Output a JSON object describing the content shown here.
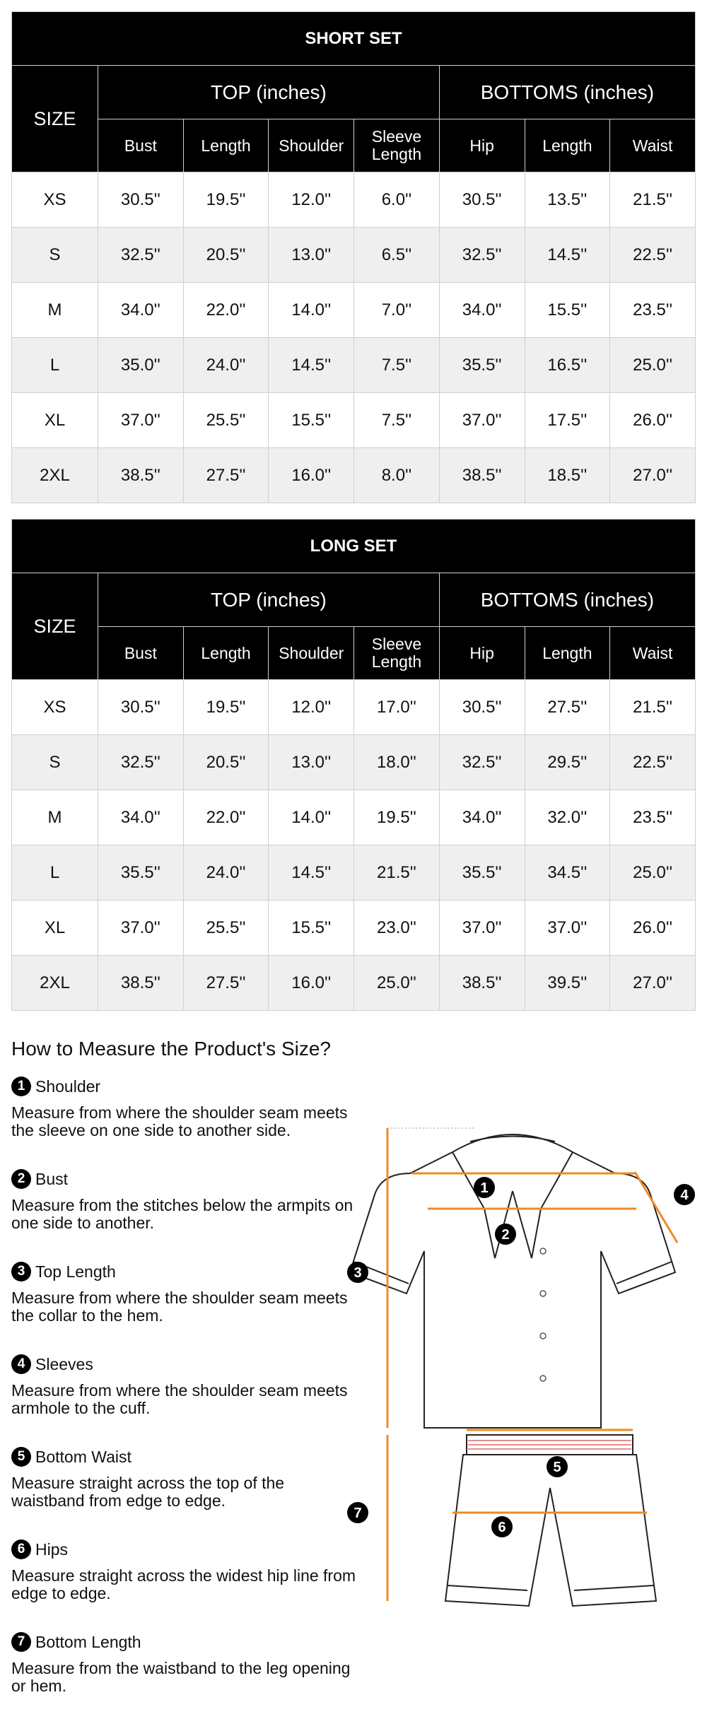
{
  "short_set": {
    "title": "SHORT SET",
    "size_label": "SIZE",
    "top_label": "TOP (inches)",
    "bottoms_label": "BOTTOMS (inches)",
    "columns": [
      "Bust",
      "Length",
      "Shoulder",
      "Sleeve Length",
      "Hip",
      "Length",
      "Waist"
    ],
    "rows": [
      [
        "XS",
        "30.5''",
        "19.5''",
        "12.0''",
        "6.0''",
        "30.5''",
        "13.5''",
        "21.5''"
      ],
      [
        "S",
        "32.5''",
        "20.5''",
        "13.0''",
        "6.5''",
        "32.5''",
        "14.5''",
        "22.5''"
      ],
      [
        "M",
        "34.0''",
        "22.0''",
        "14.0''",
        "7.0''",
        "34.0''",
        "15.5''",
        "23.5''"
      ],
      [
        "L",
        "35.0''",
        "24.0''",
        "14.5''",
        "7.5''",
        "35.5''",
        "16.5''",
        "25.0''"
      ],
      [
        "XL",
        "37.0''",
        "25.5''",
        "15.5''",
        "7.5''",
        "37.0''",
        "17.5''",
        "26.0''"
      ],
      [
        "2XL",
        "38.5''",
        "27.5''",
        "16.0''",
        "8.0''",
        "38.5''",
        "18.5''",
        "27.0''"
      ]
    ]
  },
  "long_set": {
    "title": "LONG SET",
    "size_label": "SIZE",
    "top_label": "TOP (inches)",
    "bottoms_label": "BOTTOMS (inches)",
    "columns": [
      "Bust",
      "Length",
      "Shoulder",
      "Sleeve Length",
      "Hip",
      "Length",
      "Waist"
    ],
    "rows": [
      [
        "XS",
        "30.5''",
        "19.5''",
        "12.0''",
        "17.0''",
        "30.5''",
        "27.5''",
        "21.5''"
      ],
      [
        "S",
        "32.5''",
        "20.5''",
        "13.0''",
        "18.0''",
        "32.5''",
        "29.5''",
        "22.5''"
      ],
      [
        "M",
        "34.0''",
        "22.0''",
        "14.0''",
        "19.5''",
        "34.0''",
        "32.0''",
        "23.5''"
      ],
      [
        "L",
        "35.5''",
        "24.0''",
        "14.5''",
        "21.5''",
        "35.5''",
        "34.5''",
        "25.0''"
      ],
      [
        "XL",
        "37.0''",
        "25.5''",
        "15.5''",
        "23.0''",
        "37.0''",
        "37.0''",
        "26.0''"
      ],
      [
        "2XL",
        "38.5''",
        "27.5''",
        "16.0''",
        "25.0''",
        "38.5''",
        "39.5''",
        "27.0''"
      ]
    ]
  },
  "guide": {
    "title": "How to Measure the Product's Size?",
    "items": [
      {
        "num": "1",
        "name": "Shoulder",
        "desc": "Measure from where the shoulder seam meets the sleeve on one side to another side."
      },
      {
        "num": "2",
        "name": "Bust",
        "desc": "Measure from the stitches below the armpits on one side to another."
      },
      {
        "num": "3",
        "name": "Top Length",
        "desc": "Measure from where the shoulder seam meets the collar to the hem."
      },
      {
        "num": "4",
        "name": "Sleeves",
        "desc": "Measure from where the shoulder seam meets armhole to the cuff."
      },
      {
        "num": "5",
        "name": "Bottom Waist",
        "desc": "Measure straight across the top of the waistband from edge to edge."
      },
      {
        "num": "6",
        "name": "Hips",
        "desc": "Measure straight across the widest hip line from edge to edge."
      },
      {
        "num": "7",
        "name": "Bottom Length",
        "desc": "Measure from the waistband to the leg opening or hem."
      }
    ]
  },
  "diagram": {
    "markers": [
      "1",
      "2",
      "3",
      "4",
      "5",
      "6",
      "7"
    ],
    "measure_color": "#f08a24",
    "icon": "pajama-set-diagram"
  }
}
